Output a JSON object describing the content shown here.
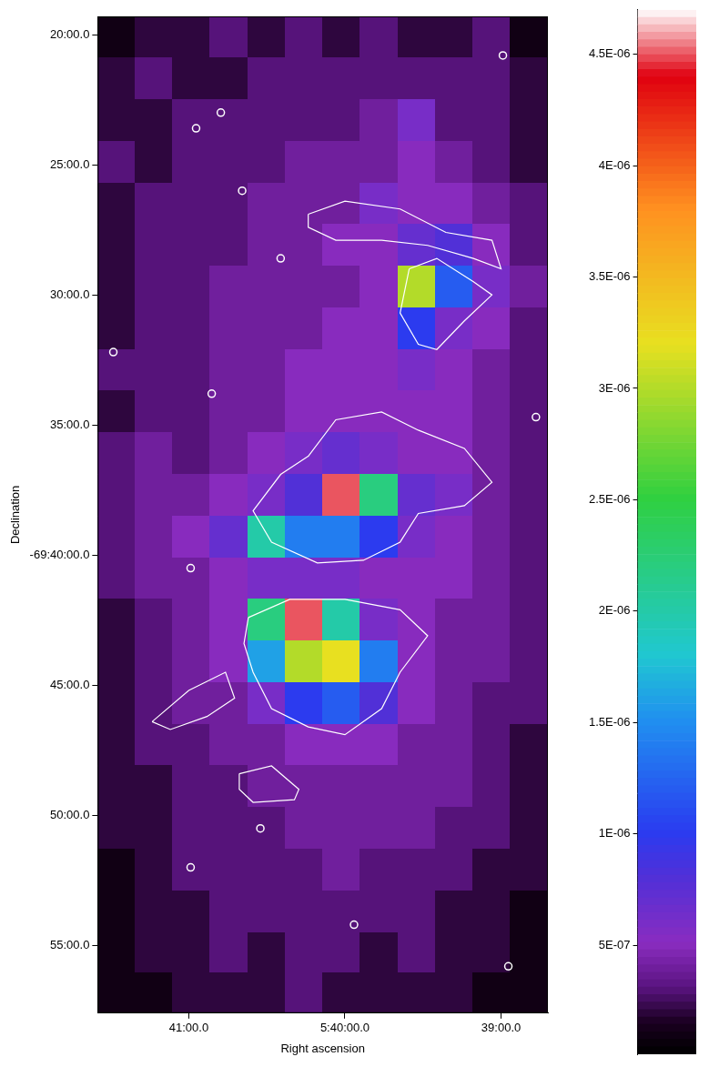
{
  "chart_data": {
    "type": "heatmap",
    "x_label": "Right ascension",
    "y_label": "Declination",
    "xlim": [
      2495,
      2322
    ],
    "ylim": [
      -4197.6,
      -4159.3
    ],
    "xticks": [
      {
        "value": 2460,
        "label": "41:00.0"
      },
      {
        "value": 2400,
        "label": "5:40:00.0"
      },
      {
        "value": 2340,
        "label": "39:00.0"
      }
    ],
    "yticks": [
      {
        "value": -4160,
        "label": "20:00.0"
      },
      {
        "value": -4165,
        "label": "25:00.0"
      },
      {
        "value": -4170,
        "label": "30:00.0"
      },
      {
        "value": -4175,
        "label": "35:00.0"
      },
      {
        "value": -4180,
        "label": "-69:40:00.0"
      },
      {
        "value": -4185,
        "label": "45:00.0"
      },
      {
        "value": -4190,
        "label": "50:00.0"
      },
      {
        "value": -4195,
        "label": "55:00.0"
      }
    ],
    "grid": false,
    "cells": {
      "x": [
        2487.8,
        2473.4,
        2459.0,
        2444.6,
        2430.2,
        2415.8,
        2401.3,
        2386.9,
        2372.5,
        2358.1,
        2343.7,
        2329.3
      ],
      "y": [
        -4160.1,
        -4161.7,
        -4163.3,
        -4164.9,
        -4166.5,
        -4168.1,
        -4169.7,
        -4171.3,
        -4172.9,
        -4174.5,
        -4176.1,
        -4177.7,
        -4179.3,
        -4180.9,
        -4182.5,
        -4184.1,
        -4185.7,
        -4187.3,
        -4188.9,
        -4190.5,
        -4192.1,
        -4193.7,
        -4195.3,
        -4196.8
      ],
      "values": [
        [
          1e-07,
          2e-07,
          2e-07,
          3e-07,
          2e-07,
          3e-07,
          2e-07,
          3e-07,
          2e-07,
          2e-07,
          3e-07,
          1e-07
        ],
        [
          2e-07,
          3e-07,
          2e-07,
          2e-07,
          3e-07,
          3e-07,
          3e-07,
          3e-07,
          3e-07,
          3e-07,
          3e-07,
          2e-07
        ],
        [
          2e-07,
          2e-07,
          3e-07,
          3e-07,
          3e-07,
          3e-07,
          3e-07,
          4e-07,
          6e-07,
          3e-07,
          3e-07,
          2e-07
        ],
        [
          3e-07,
          2e-07,
          3e-07,
          3e-07,
          3e-07,
          4e-07,
          4e-07,
          4e-07,
          5e-07,
          4e-07,
          3e-07,
          2e-07
        ],
        [
          2e-07,
          3e-07,
          3e-07,
          3e-07,
          4e-07,
          4e-07,
          4e-07,
          6e-07,
          5e-07,
          5e-07,
          4e-07,
          3e-07
        ],
        [
          2e-07,
          3e-07,
          3e-07,
          3e-07,
          4e-07,
          4e-07,
          5e-07,
          5e-07,
          7e-07,
          8e-07,
          5e-07,
          3e-07
        ],
        [
          2e-07,
          3e-07,
          3e-07,
          4e-07,
          4e-07,
          4e-07,
          4e-07,
          5e-07,
          3e-06,
          1.2e-06,
          6e-07,
          4e-07
        ],
        [
          2e-07,
          3e-07,
          3e-07,
          4e-07,
          4e-07,
          4e-07,
          5e-07,
          5e-07,
          1e-06,
          6e-07,
          5e-07,
          3e-07
        ],
        [
          3e-07,
          3e-07,
          3e-07,
          4e-07,
          4e-07,
          5e-07,
          5e-07,
          5e-07,
          6e-07,
          5e-07,
          4e-07,
          3e-07
        ],
        [
          2e-07,
          3e-07,
          3e-07,
          4e-07,
          4e-07,
          5e-07,
          5e-07,
          5e-07,
          5e-07,
          5e-07,
          4e-07,
          3e-07
        ],
        [
          3e-07,
          4e-07,
          3e-07,
          4e-07,
          5e-07,
          6e-07,
          7e-07,
          6e-07,
          5e-07,
          5e-07,
          4e-07,
          3e-07
        ],
        [
          3e-07,
          4e-07,
          4e-07,
          5e-07,
          6e-07,
          8e-07,
          4.5e-06,
          2.2e-06,
          7e-07,
          6e-07,
          4e-07,
          3e-07
        ],
        [
          3e-07,
          4e-07,
          5e-07,
          7e-07,
          2e-06,
          1.4e-06,
          1.4e-06,
          1e-06,
          6e-07,
          5e-07,
          4e-07,
          3e-07
        ],
        [
          3e-07,
          4e-07,
          4e-07,
          5e-07,
          6e-07,
          6e-07,
          6e-07,
          5e-07,
          5e-07,
          5e-07,
          4e-07,
          3e-07
        ],
        [
          2e-07,
          3e-07,
          4e-07,
          5e-07,
          2.2e-06,
          4.5e-06,
          2e-06,
          6e-07,
          5e-07,
          4e-07,
          4e-07,
          3e-07
        ],
        [
          2e-07,
          3e-07,
          4e-07,
          5e-07,
          1.6e-06,
          3e-06,
          3.2e-06,
          1.4e-06,
          5e-07,
          4e-07,
          4e-07,
          3e-07
        ],
        [
          2e-07,
          3e-07,
          4e-07,
          4e-07,
          6e-07,
          1e-06,
          1.2e-06,
          8e-07,
          5e-07,
          4e-07,
          3e-07,
          3e-07
        ],
        [
          2e-07,
          3e-07,
          3e-07,
          4e-07,
          4e-07,
          5e-07,
          5e-07,
          5e-07,
          4e-07,
          4e-07,
          3e-07,
          2e-07
        ],
        [
          2e-07,
          2e-07,
          3e-07,
          3e-07,
          4e-07,
          4e-07,
          4e-07,
          4e-07,
          4e-07,
          4e-07,
          3e-07,
          2e-07
        ],
        [
          2e-07,
          2e-07,
          3e-07,
          3e-07,
          3e-07,
          4e-07,
          4e-07,
          4e-07,
          4e-07,
          3e-07,
          3e-07,
          2e-07
        ],
        [
          1e-07,
          2e-07,
          3e-07,
          3e-07,
          3e-07,
          3e-07,
          4e-07,
          3e-07,
          3e-07,
          3e-07,
          2e-07,
          2e-07
        ],
        [
          1e-07,
          2e-07,
          2e-07,
          3e-07,
          3e-07,
          3e-07,
          3e-07,
          3e-07,
          3e-07,
          2e-07,
          2e-07,
          1e-07
        ],
        [
          1e-07,
          2e-07,
          2e-07,
          3e-07,
          2e-07,
          3e-07,
          3e-07,
          2e-07,
          3e-07,
          2e-07,
          2e-07,
          1e-07
        ],
        [
          1e-07,
          1e-07,
          2e-07,
          2e-07,
          2e-07,
          3e-07,
          2e-07,
          2e-07,
          2e-07,
          2e-07,
          1e-07,
          1e-07
        ]
      ]
    },
    "colorbar": {
      "range": [
        1e-08,
        4.7e-06
      ],
      "ticks": [
        {
          "value": 5e-07,
          "label": "5E-07"
        },
        {
          "value": 1e-06,
          "label": "1E-06"
        },
        {
          "value": 1.5e-06,
          "label": "1.5E-06"
        },
        {
          "value": 2e-06,
          "label": "2E-06"
        },
        {
          "value": 2.5e-06,
          "label": "2.5E-06"
        },
        {
          "value": 3e-06,
          "label": "3E-06"
        },
        {
          "value": 3.5e-06,
          "label": "3.5E-06"
        },
        {
          "value": 4e-06,
          "label": "4E-06"
        },
        {
          "value": 4.5e-06,
          "label": "4.5E-06"
        }
      ]
    },
    "series": [
      {
        "type": "line",
        "color": "#ffffff",
        "x": [
          2414.1,
          2403.5,
          2385.9,
          2371.8,
          2354.1,
          2343.5,
          2354.1,
          2371.8,
          2378.8,
          2392.9,
          2410.6,
          2428.2,
          2435.3,
          2424.7,
          2414.1
        ],
        "y": [
          -4176.2,
          -4174.8,
          -4174.5,
          -4175.2,
          -4175.9,
          -4177.2,
          -4178.1,
          -4178.4,
          -4179.5,
          -4180.2,
          -4180.3,
          -4179.5,
          -4178.3,
          -4176.9,
          -4176.2
        ]
      },
      {
        "type": "line",
        "color": "#ffffff",
        "x": [
          2437.1,
          2421.2,
          2400.0,
          2378.8,
          2368.2,
          2378.8,
          2385.9,
          2400.0,
          2414.1,
          2428.2,
          2435.3,
          2438.8,
          2437.1
        ],
        "y": [
          -4182.4,
          -4181.7,
          -4181.7,
          -4182.1,
          -4183.1,
          -4184.5,
          -4185.9,
          -4186.9,
          -4186.6,
          -4185.9,
          -4184.5,
          -4183.4,
          -4182.4
        ]
      },
      {
        "type": "line",
        "color": "#ffffff",
        "x": [
          2375.3,
          2364.7,
          2350.6,
          2343.5,
          2354.1,
          2364.7,
          2371.8,
          2378.8,
          2375.3
        ],
        "y": [
          -4169.0,
          -4168.6,
          -4169.5,
          -4170.0,
          -4171.0,
          -4172.1,
          -4171.9,
          -4170.7,
          -4169.0
        ]
      },
      {
        "type": "line",
        "color": "#ffffff",
        "x": [
          2414.1,
          2400.0,
          2378.8,
          2361.2,
          2343.5,
          2340.0,
          2350.6,
          2368.2,
          2385.9,
          2403.5,
          2414.1,
          2414.1
        ],
        "y": [
          -4166.9,
          -4166.4,
          -4166.7,
          -4167.6,
          -4167.9,
          -4169.0,
          -4168.6,
          -4168.1,
          -4167.9,
          -4167.9,
          -4167.4,
          -4166.9
        ]
      },
      {
        "type": "line",
        "color": "#ffffff",
        "x": [
          2440.6,
          2428.2,
          2417.7,
          2419.4,
          2435.3,
          2440.6,
          2440.6
        ],
        "y": [
          -4188.4,
          -4188.1,
          -4189.0,
          -4189.4,
          -4189.5,
          -4189.0,
          -4188.4
        ]
      },
      {
        "type": "line",
        "color": "#ffffff",
        "x": [
          2474.1,
          2460.0,
          2445.9,
          2442.4,
          2453.0,
          2467.1,
          2474.1
        ],
        "y": [
          -4186.4,
          -4185.2,
          -4184.5,
          -4185.5,
          -4186.2,
          -4186.7,
          -4186.4
        ]
      },
      {
        "type": "scatter",
        "marker": "circle",
        "color": "#ffffff",
        "x": [
          2339.3,
          2447.7,
          2457.2,
          2439.5,
          2424.7,
          2451.2,
          2459.3,
          2396.5,
          2337.2,
          2459.3,
          2489.0,
          2326.6,
          2432.5
        ],
        "y": [
          -4160.8,
          -4163.0,
          -4163.6,
          -4166.0,
          -4168.6,
          -4173.8,
          -4180.5,
          -4194.2,
          -4195.8,
          -4192.0,
          -4172.2,
          -4174.7,
          -4190.5
        ]
      }
    ]
  }
}
